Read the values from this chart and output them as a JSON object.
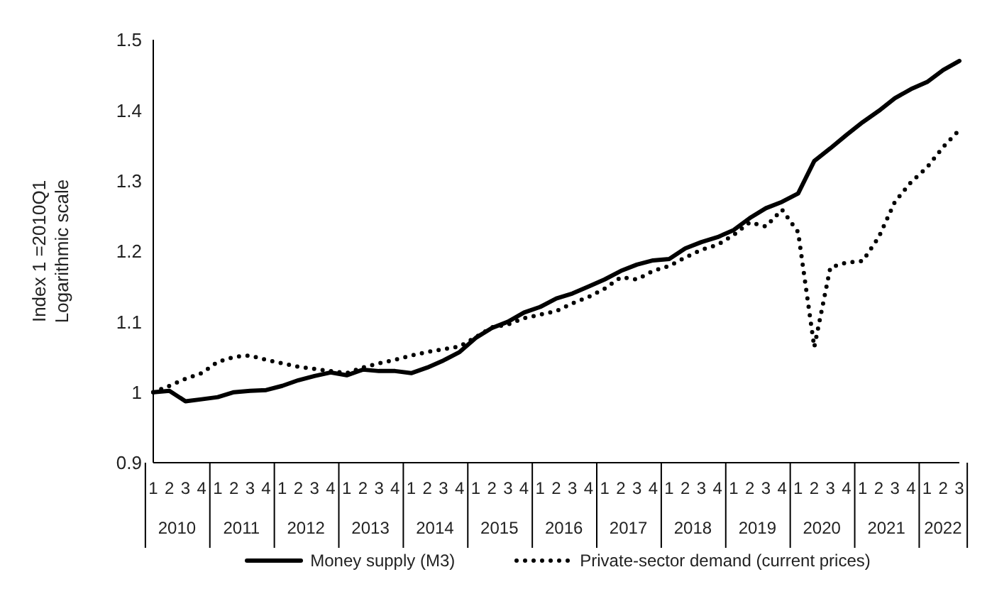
{
  "chart_data": {
    "type": "line",
    "ylabel": "Index 1 =2010Q1\nLogarithmic scale",
    "categories": [
      "1",
      "2",
      "3",
      "4",
      "1",
      "2",
      "3",
      "4",
      "1",
      "2",
      "3",
      "4",
      "1",
      "2",
      "3",
      "4",
      "1",
      "2",
      "3",
      "4",
      "1",
      "2",
      "3",
      "4",
      "1",
      "2",
      "3",
      "4",
      "1",
      "2",
      "3",
      "4",
      "1",
      "2",
      "3",
      "4",
      "1",
      "2",
      "3",
      "4",
      "1",
      "2",
      "3",
      "4",
      "1",
      "2",
      "3",
      "4",
      "1",
      "2",
      "3"
    ],
    "annotations": [
      "2010",
      "2011",
      "2012",
      "2013",
      "2014",
      "2015",
      "2016",
      "2017",
      "2018",
      "2019",
      "2020",
      "2021",
      "2022"
    ],
    "series": [
      {
        "name": "Money supply (M3)",
        "color": "#000000",
        "line_style": "solid",
        "values": [
          1.0,
          1.002,
          0.987,
          0.99,
          0.993,
          1.0,
          1.002,
          1.003,
          1.009,
          1.017,
          1.023,
          1.028,
          1.024,
          1.032,
          1.03,
          1.03,
          1.027,
          1.035,
          1.045,
          1.057,
          1.077,
          1.091,
          1.1,
          1.113,
          1.121,
          1.133,
          1.14,
          1.15,
          1.16,
          1.172,
          1.181,
          1.187,
          1.189,
          1.204,
          1.213,
          1.22,
          1.23,
          1.247,
          1.261,
          1.27,
          1.282,
          1.328,
          1.346,
          1.365,
          1.383,
          1.399,
          1.417,
          1.43,
          1.44,
          1.457,
          1.47
        ]
      },
      {
        "name": "Private-sector demand (current prices)",
        "color": "#000000",
        "line_style": "dotted",
        "values": [
          1.0,
          1.009,
          1.019,
          1.027,
          1.043,
          1.05,
          1.052,
          1.046,
          1.041,
          1.036,
          1.033,
          1.03,
          1.027,
          1.035,
          1.041,
          1.046,
          1.052,
          1.057,
          1.061,
          1.065,
          1.078,
          1.092,
          1.096,
          1.105,
          1.11,
          1.115,
          1.126,
          1.135,
          1.147,
          1.163,
          1.16,
          1.172,
          1.179,
          1.191,
          1.202,
          1.209,
          1.223,
          1.241,
          1.235,
          1.259,
          1.227,
          1.064,
          1.177,
          1.184,
          1.186,
          1.22,
          1.27,
          1.298,
          1.319,
          1.348,
          1.372
        ]
      }
    ],
    "ylim": [
      0.9,
      1.5
    ],
    "yticks": [
      0.9,
      1,
      1.1,
      1.2,
      1.3,
      1.4,
      1.5
    ],
    "grid": false,
    "legend": "bottom",
    "marker": "none"
  }
}
